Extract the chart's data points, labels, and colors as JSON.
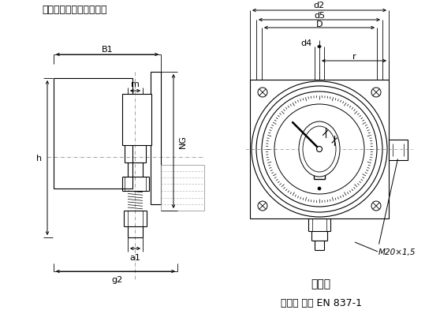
{
  "title": "通用插入式连接器：右侧",
  "bg_color": "#ffffff",
  "line_color": "#000000",
  "fig_width": 5.58,
  "fig_height": 4.27,
  "dpi": 100,
  "labels": {
    "B1": "B1",
    "m": "m",
    "NG": "NG",
    "h": "h",
    "a1": "a1",
    "g2": "g2",
    "d2": "d2",
    "d5": "d5",
    "D": "D",
    "d4": "d4",
    "r": "r",
    "M20": "M20×1,5",
    "gudingkong": "固定孔",
    "changkong": "长孔， 根据 EN 837-1"
  }
}
